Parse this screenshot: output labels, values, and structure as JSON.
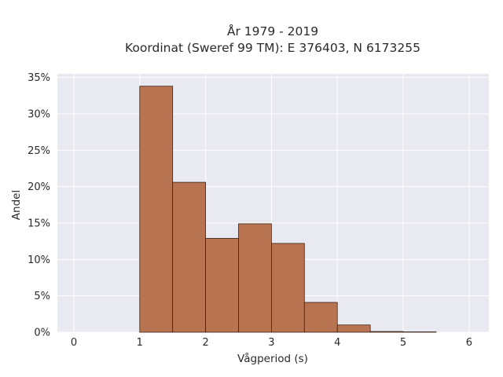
{
  "chart_data": {
    "type": "bar",
    "title": "År 1979 - 2019",
    "subtitle": "Koordinat (Sweref 99 TM): E 376403, N 6173255",
    "xlabel": "Vågperiod (s)",
    "ylabel": "Andel",
    "xlim": [
      -0.25,
      6.3
    ],
    "ylim": [
      0,
      0.355
    ],
    "x_ticks": [
      0,
      1,
      2,
      3,
      4,
      5,
      6
    ],
    "x_tick_labels": [
      "0",
      "1",
      "2",
      "3",
      "4",
      "5",
      "6"
    ],
    "y_ticks": [
      0,
      0.05,
      0.1,
      0.15,
      0.2,
      0.25,
      0.3,
      0.35
    ],
    "y_tick_labels": [
      "0%",
      "5%",
      "10%",
      "15%",
      "20%",
      "25%",
      "30%",
      "35%"
    ],
    "bins": [
      {
        "x0": 1.0,
        "x1": 1.5,
        "value": 0.338
      },
      {
        "x0": 1.5,
        "x1": 2.0,
        "value": 0.206
      },
      {
        "x0": 2.0,
        "x1": 2.5,
        "value": 0.129
      },
      {
        "x0": 2.5,
        "x1": 3.0,
        "value": 0.149
      },
      {
        "x0": 3.0,
        "x1": 3.5,
        "value": 0.122
      },
      {
        "x0": 3.5,
        "x1": 4.0,
        "value": 0.041
      },
      {
        "x0": 4.0,
        "x1": 4.5,
        "value": 0.01
      },
      {
        "x0": 4.5,
        "x1": 5.0,
        "value": 0.001
      },
      {
        "x0": 5.0,
        "x1": 5.5,
        "value": 0.0005
      }
    ],
    "grid": true,
    "colors": {
      "bar_fill": "#b87350",
      "bar_edge": "#3a2418",
      "plot_bg": "#e9e9f1",
      "grid": "#ffffff"
    }
  }
}
